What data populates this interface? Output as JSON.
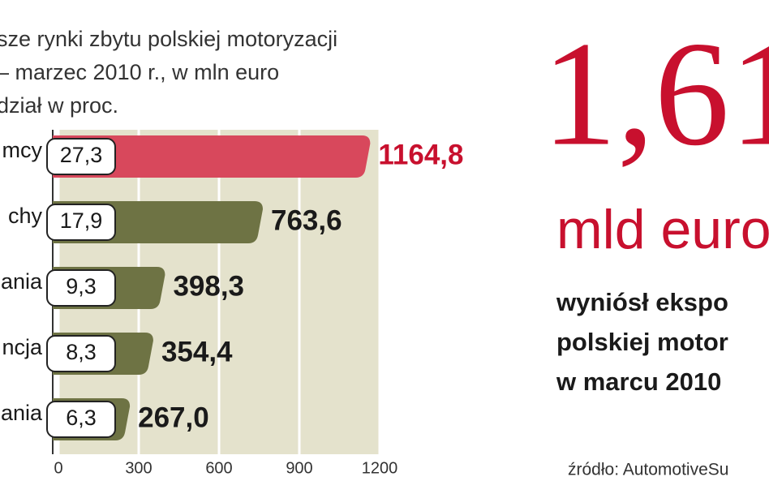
{
  "chart_data": {
    "type": "bar",
    "title_lines": [
      "sze rynki zbytu polskiej motoryzacji",
      "– marzec 2010 r., w mln euro",
      "dział w proc."
    ],
    "categories": [
      "mcy",
      "chy",
      "ania",
      "ncja",
      "ania"
    ],
    "values": [
      1164.8,
      763.6,
      398.3,
      354.4,
      267.0
    ],
    "value_labels": [
      "1164,8",
      "763,6",
      "398,3",
      "354,4",
      "267,0"
    ],
    "shares": [
      27.3,
      17.9,
      9.3,
      8.3,
      6.3
    ],
    "share_labels": [
      "27,3",
      "17,9",
      "9,3",
      "8,3",
      "6,3"
    ],
    "colors": [
      "#d8485c",
      "#6e7344",
      "#6e7344",
      "#6e7344",
      "#6e7344"
    ],
    "label_colors": [
      "#c8102e",
      "#1a1a1a",
      "#1a1a1a",
      "#1a1a1a",
      "#1a1a1a"
    ],
    "xlim": [
      0,
      1200
    ],
    "xticks": [
      0,
      300,
      600,
      900,
      1200
    ],
    "grid": true
  },
  "callout": {
    "value": "1,61",
    "unit": "mld euro",
    "lines": [
      "wyniósł ekspo",
      "polskiej motor",
      "w marcu 2010"
    ],
    "source": "źródło: AutomotiveSu"
  }
}
